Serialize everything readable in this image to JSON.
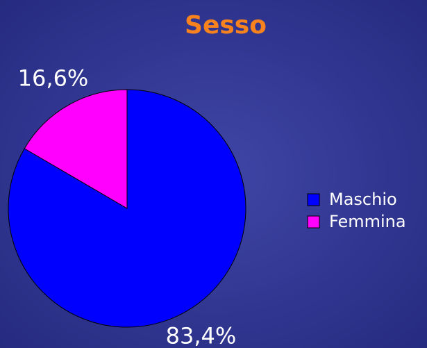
{
  "chart_data": {
    "type": "pie",
    "title": "Sesso",
    "categories": [
      "Maschio",
      "Femmina"
    ],
    "values": [
      83.4,
      16.6
    ],
    "value_labels": [
      "83,4%",
      "16,6%"
    ],
    "colors": [
      "#0000ff",
      "#ff00ff"
    ]
  }
}
